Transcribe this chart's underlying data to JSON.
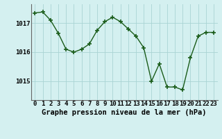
{
  "x": [
    0,
    1,
    2,
    3,
    4,
    5,
    6,
    7,
    8,
    9,
    10,
    11,
    12,
    13,
    14,
    15,
    16,
    17,
    18,
    19,
    20,
    21,
    22,
    23
  ],
  "y": [
    1017.35,
    1017.38,
    1017.1,
    1016.65,
    1016.1,
    1016.0,
    1016.1,
    1016.28,
    1016.75,
    1017.05,
    1017.2,
    1017.05,
    1016.8,
    1016.55,
    1016.15,
    1015.0,
    1015.6,
    1014.8,
    1014.8,
    1014.7,
    1015.8,
    1016.55,
    1016.68,
    1016.68
  ],
  "line_color": "#1a5c1a",
  "marker": "+",
  "marker_size": 4,
  "marker_linewidth": 1.2,
  "line_width": 1.0,
  "bg_color": "#d4f0f0",
  "grid_color": "#aad4d4",
  "ylabel_ticks": [
    1015,
    1016,
    1017
  ],
  "xlabel": "Graphe pression niveau de la mer (hPa)",
  "xlabel_fontsize": 7.5,
  "tick_fontsize": 6.5,
  "ylim": [
    1014.35,
    1017.65
  ],
  "xlim": [
    -0.5,
    23.5
  ]
}
